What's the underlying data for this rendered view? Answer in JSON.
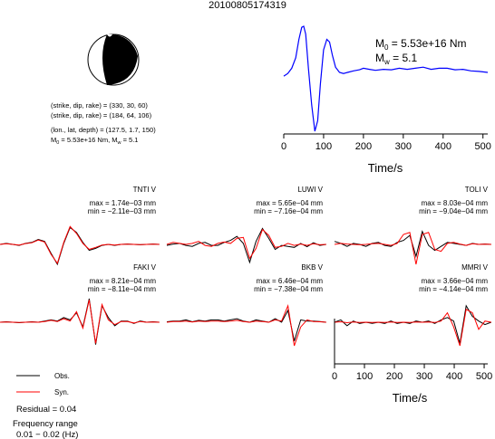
{
  "title": "20100805174319",
  "mechanism": {
    "planes": [
      "(strike, dip, rake) = (330, 30, 60)",
      "(strike, dip, rake) = (184, 64, 106)"
    ],
    "location": "(lon., lat, depth) = (127.5, 1.7, 150)",
    "m0_prefix": "M",
    "m0_sub": "0",
    "m0_value": " = 5.53e+16 Nm, M",
    "mw_sub": "w",
    "mw_value": " = 5.1",
    "colors": {
      "fill": "#000000",
      "outline": "#000000"
    },
    "icon": "focal-mechanism-beachball"
  },
  "stf": {
    "m0_line_prefix": "M",
    "m0_line_sub": "0",
    "m0_line_value": " = 5.53e+16 Nm",
    "mw_line_prefix": "M",
    "mw_line_sub": "w",
    "mw_line_value": " = 5.1",
    "xlabel": "Time/s",
    "color": "#0000ff"
  },
  "legend": {
    "obs_label": "Obs.",
    "syn_label": "Syn.",
    "obs_color": "#000000",
    "syn_color": "#ff0000"
  },
  "residual": "Residual = 0.04",
  "frequency_title": "Frequency range",
  "frequency_value": "0.01 − 0.02 (Hz)",
  "wave_axis": {
    "xlabel": "Time/s",
    "ticks": [
      "0",
      "100",
      "200",
      "300",
      "400",
      "500"
    ]
  },
  "chart_data": [
    {
      "type": "line",
      "name": "source-time-function",
      "xlabel": "Time/s",
      "xlim": [
        0,
        512
      ],
      "xticks": [
        0,
        100,
        200,
        300,
        400,
        500
      ],
      "x": [
        0,
        10,
        20,
        30,
        38,
        45,
        50,
        55,
        62,
        70,
        78,
        85,
        92,
        100,
        108,
        115,
        122,
        130,
        140,
        150,
        160,
        175,
        190,
        200,
        215,
        230,
        250,
        270,
        290,
        310,
        330,
        350,
        370,
        390,
        410,
        430,
        450,
        470,
        490,
        512
      ],
      "y": [
        0.05,
        0.1,
        0.2,
        0.4,
        0.75,
        0.98,
        1.0,
        0.85,
        0.2,
        -0.5,
        -1.0,
        -0.8,
        -0.1,
        0.55,
        0.75,
        0.7,
        0.45,
        0.22,
        0.12,
        0.1,
        0.12,
        0.15,
        0.17,
        0.2,
        0.18,
        0.16,
        0.18,
        0.17,
        0.2,
        0.18,
        0.2,
        0.22,
        0.18,
        0.2,
        0.2,
        0.17,
        0.18,
        0.15,
        0.14,
        0.12
      ]
    },
    {
      "type": "line",
      "stations": [
        {
          "name": "TNTI V",
          "max": "max = 1.74e−03 mm",
          "min": "min = −2.11e−03 mm",
          "x": [
            0,
            20,
            40,
            60,
            80,
            100,
            120,
            140,
            160,
            180,
            200,
            220,
            240,
            260,
            280,
            300,
            320,
            340,
            360,
            380,
            400,
            420,
            440,
            460,
            480,
            500
          ],
          "obs": [
            0,
            0.05,
            0,
            -0.05,
            0.05,
            0.1,
            0.25,
            0.15,
            -0.45,
            -1.0,
            0.05,
            0.85,
            0.6,
            0.1,
            -0.3,
            -0.2,
            -0.05,
            0,
            -0.05,
            0,
            0.02,
            0,
            -0.02,
            0,
            0.02,
            0
          ],
          "syn": [
            0,
            0.03,
            0,
            -0.03,
            0.04,
            0.08,
            0.22,
            0.12,
            -0.5,
            -0.95,
            0.1,
            0.9,
            0.55,
            0.05,
            -0.25,
            -0.15,
            -0.03,
            0,
            -0.03,
            0,
            0.01,
            0,
            -0.01,
            0,
            0.01,
            0
          ]
        },
        {
          "name": "LUWI V",
          "max": "max = 5.65e−04 mm",
          "min": "min = −7.16e−04 mm",
          "x": [
            0,
            20,
            40,
            60,
            80,
            100,
            120,
            140,
            160,
            180,
            200,
            220,
            240,
            260,
            280,
            300,
            320,
            340,
            360,
            380,
            400,
            420,
            440,
            460,
            480,
            500
          ],
          "obs": [
            -0.05,
            0.02,
            0.05,
            -0.05,
            -0.1,
            0.05,
            0.1,
            -0.05,
            -0.05,
            0.1,
            0.2,
            0.4,
            0.05,
            -0.9,
            0.15,
            0.8,
            0.3,
            -0.25,
            -0.05,
            -0.1,
            -0.15,
            0.05,
            -0.12,
            0.08,
            -0.05,
            0
          ],
          "syn": [
            0,
            0.1,
            0.05,
            0.0,
            0.05,
            0.15,
            -0.05,
            -0.1,
            0.05,
            0.12,
            0.05,
            0.3,
            0.35,
            -0.7,
            -0.2,
            0.75,
            0.45,
            -0.15,
            -0.1,
            0.05,
            -0.05,
            0.02,
            -0.05,
            0.03,
            -0.02,
            0
          ]
        },
        {
          "name": "TOLI V",
          "max": "max = 8.03e−04 mm",
          "min": "min = −9.04e−04 mm",
          "x": [
            0,
            20,
            40,
            60,
            80,
            100,
            120,
            140,
            160,
            180,
            200,
            220,
            240,
            260,
            280,
            300,
            320,
            340,
            360,
            380,
            400,
            420,
            440,
            460,
            480,
            500
          ],
          "obs": [
            0.15,
            0.05,
            -0.1,
            0.05,
            0.0,
            -0.1,
            0.05,
            0.1,
            -0.05,
            -0.1,
            0.1,
            0.2,
            0.45,
            -0.6,
            0.65,
            -0.05,
            -0.3,
            -0.1,
            0.1,
            0.05,
            0.0,
            -0.05,
            0.05,
            0,
            0.02,
            0
          ],
          "syn": [
            0,
            0.05,
            0.02,
            0,
            -0.02,
            0,
            0.03,
            0.05,
            0,
            -0.05,
            0.05,
            0.5,
            0.6,
            -1.0,
            0.5,
            0.6,
            -0.25,
            -0.35,
            0.05,
            0.1,
            0.02,
            -0.05,
            0.03,
            0,
            0.01,
            0
          ]
        },
        {
          "name": "FAKI V",
          "max": "max = 8.21e−04 mm",
          "min": "min = −8.11e−04 mm",
          "x": [
            0,
            20,
            40,
            60,
            80,
            100,
            120,
            140,
            160,
            180,
            200,
            220,
            240,
            260,
            280,
            300,
            320,
            340,
            360,
            380,
            400,
            420,
            440,
            460,
            480,
            500
          ],
          "obs": [
            0,
            0.02,
            0,
            -0.02,
            0,
            0.02,
            0,
            0.05,
            0.1,
            0.05,
            0.2,
            0.1,
            0.4,
            -0.2,
            1.0,
            -0.95,
            0.7,
            0.2,
            -0.15,
            0.05,
            0.05,
            -0.05,
            0.05,
            0,
            0.02,
            0
          ],
          "syn": [
            0,
            0.01,
            0,
            -0.01,
            0,
            0.01,
            0,
            0.03,
            0.08,
            0.03,
            0.15,
            0.05,
            0.45,
            -0.25,
            0.95,
            -0.9,
            0.75,
            0.1,
            -0.1,
            0.03,
            0.03,
            -0.03,
            0.03,
            0,
            0.01,
            0
          ]
        },
        {
          "name": "BKB V",
          "max": "max = 6.46e−04 mm",
          "min": "min = −7.38e−04 mm",
          "x": [
            0,
            20,
            40,
            60,
            80,
            100,
            120,
            140,
            160,
            180,
            200,
            220,
            240,
            260,
            280,
            300,
            320,
            340,
            360,
            380,
            400,
            420,
            440,
            460,
            480,
            500
          ],
          "obs": [
            0.02,
            0.05,
            0.05,
            0.1,
            0.02,
            0.08,
            0.05,
            0.1,
            0.1,
            0.05,
            0.1,
            0.15,
            0.05,
            0.0,
            0.1,
            0.05,
            0.0,
            0.15,
            0.0,
            0.5,
            -0.8,
            0.1,
            0.05,
            0.05,
            0.03,
            0
          ],
          "syn": [
            0,
            0.03,
            0.03,
            0.05,
            0.01,
            0.05,
            0.03,
            0.05,
            0.05,
            0.03,
            0.05,
            0.08,
            0.03,
            0.0,
            0.05,
            0.03,
            0.0,
            0.1,
            0.05,
            0.7,
            -1.0,
            -0.2,
            0.1,
            0.03,
            0.02,
            0
          ]
        },
        {
          "name": "MMRI V",
          "max": "max = 3.66e−04 mm",
          "min": "min = −4.14e−04 mm",
          "x": [
            0,
            20,
            40,
            60,
            80,
            100,
            120,
            140,
            160,
            180,
            200,
            220,
            240,
            260,
            280,
            300,
            320,
            340,
            360,
            380,
            400,
            420,
            440,
            460,
            480,
            500
          ],
          "obs": [
            0,
            0.1,
            -0.15,
            0.05,
            -0.05,
            0.0,
            -0.05,
            0.0,
            -0.05,
            0.05,
            -0.05,
            0.0,
            -0.05,
            0.05,
            0.0,
            0.05,
            -0.05,
            0.1,
            0.2,
            0.05,
            -0.9,
            0.7,
            0.25,
            0.05,
            -0.1,
            0.0
          ],
          "syn": [
            0,
            0.02,
            -0.02,
            0.01,
            -0.01,
            0.0,
            -0.01,
            0.0,
            -0.01,
            0.01,
            -0.01,
            0.0,
            -0.01,
            0.01,
            0.0,
            0.01,
            -0.01,
            0.05,
            0.4,
            -0.2,
            -1.0,
            0.55,
            0.4,
            -0.3,
            0.05,
            0.0
          ]
        }
      ]
    }
  ]
}
